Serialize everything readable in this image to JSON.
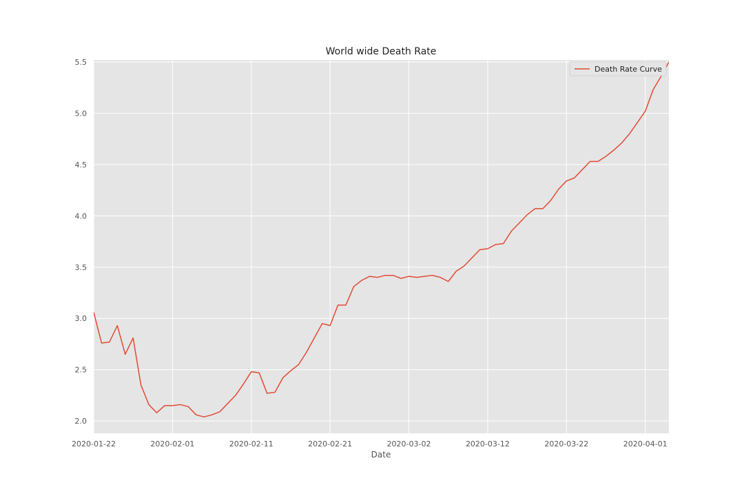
{
  "chart_data": {
    "type": "line",
    "title": "World wide Death Rate",
    "xlabel": "Date",
    "ylabel": "",
    "x_start": "2020-01-22",
    "x_end": "2020-04-04",
    "ylim": [
      1.88,
      5.52
    ],
    "grid": true,
    "legend_position": "top-right",
    "x_ticks": [
      "2020-01-22",
      "2020-02-01",
      "2020-02-11",
      "2020-02-21",
      "2020-03-02",
      "2020-03-12",
      "2020-03-22",
      "2020-04-01"
    ],
    "y_ticks": [
      "2.0",
      "2.5",
      "3.0",
      "3.5",
      "4.0",
      "4.5",
      "5.0",
      "5.5"
    ],
    "series": [
      {
        "name": "Death Rate Curve",
        "color": "#e24a33",
        "x": [
          "2020-01-22",
          "2020-01-23",
          "2020-01-24",
          "2020-01-25",
          "2020-01-26",
          "2020-01-27",
          "2020-01-28",
          "2020-01-29",
          "2020-01-30",
          "2020-01-31",
          "2020-02-01",
          "2020-02-02",
          "2020-02-03",
          "2020-02-04",
          "2020-02-05",
          "2020-02-06",
          "2020-02-07",
          "2020-02-08",
          "2020-02-09",
          "2020-02-10",
          "2020-02-11",
          "2020-02-12",
          "2020-02-13",
          "2020-02-14",
          "2020-02-15",
          "2020-02-16",
          "2020-02-17",
          "2020-02-18",
          "2020-02-19",
          "2020-02-20",
          "2020-02-21",
          "2020-02-22",
          "2020-02-23",
          "2020-02-24",
          "2020-02-25",
          "2020-02-26",
          "2020-02-27",
          "2020-02-28",
          "2020-02-29",
          "2020-03-01",
          "2020-03-02",
          "2020-03-03",
          "2020-03-04",
          "2020-03-05",
          "2020-03-06",
          "2020-03-07",
          "2020-03-08",
          "2020-03-09",
          "2020-03-10",
          "2020-03-11",
          "2020-03-12",
          "2020-03-13",
          "2020-03-14",
          "2020-03-15",
          "2020-03-16",
          "2020-03-17",
          "2020-03-18",
          "2020-03-19",
          "2020-03-20",
          "2020-03-21",
          "2020-03-22",
          "2020-03-23",
          "2020-03-24",
          "2020-03-25",
          "2020-03-26",
          "2020-03-27",
          "2020-03-28",
          "2020-03-29",
          "2020-03-30",
          "2020-03-31",
          "2020-04-01",
          "2020-04-02",
          "2020-04-03",
          "2020-04-04"
        ],
        "values": [
          3.06,
          2.76,
          2.77,
          2.93,
          2.65,
          2.81,
          2.35,
          2.16,
          2.08,
          2.15,
          2.15,
          2.16,
          2.14,
          2.06,
          2.04,
          2.06,
          2.09,
          2.17,
          2.25,
          2.36,
          2.48,
          2.47,
          2.27,
          2.28,
          2.42,
          2.49,
          2.55,
          2.67,
          2.81,
          2.95,
          2.93,
          3.13,
          3.13,
          3.31,
          3.37,
          3.41,
          3.4,
          3.42,
          3.42,
          3.39,
          3.41,
          3.4,
          3.41,
          3.42,
          3.4,
          3.36,
          3.46,
          3.51,
          3.59,
          3.67,
          3.68,
          3.72,
          3.73,
          3.85,
          3.93,
          4.01,
          4.07,
          4.07,
          4.15,
          4.26,
          4.34,
          4.37,
          4.45,
          4.53,
          4.53,
          4.58,
          4.64,
          4.71,
          4.8,
          4.91,
          5.02,
          5.23,
          5.36,
          5.5
        ]
      }
    ]
  }
}
